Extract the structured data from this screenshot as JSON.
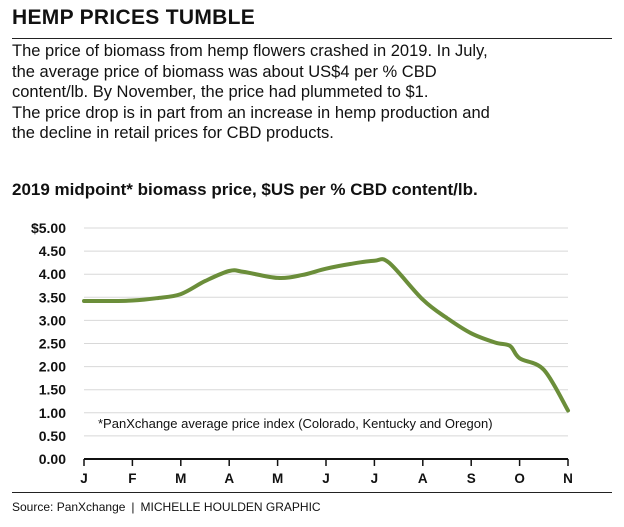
{
  "headline": "HEMP PRICES TUMBLE",
  "description": [
    "The price of biomass from hemp flowers crashed in 2019. In July,",
    "the average price of biomass  was about US$4 per % CBD",
    "content/lb. By November, the price had plummeted to $1.",
    "The price drop is in part from an increase in hemp production and",
    "the decline in retail prices for CBD products."
  ],
  "source": {
    "left": "Source: PanXchange",
    "separator": "|",
    "right": "MICHELLE HOULDEN GRAPHIC"
  },
  "colors": {
    "line": "#6b8e3a",
    "grid": "#d8d8d8",
    "axis": "#111111"
  },
  "chart_data": {
    "type": "line",
    "title": "2019 midpoint* biomass price, $US per % CBD content/lb.",
    "xlabel": "",
    "ylabel": "",
    "categories": [
      "J",
      "F",
      "M",
      "A",
      "M",
      "J",
      "J",
      "A",
      "S",
      "O",
      "N"
    ],
    "yticks": [
      "$5.00",
      "4.50",
      "4.00",
      "3.50",
      "3.00",
      "2.50",
      "2.00",
      "1.50",
      "1.00",
      "0.50",
      "0.00"
    ],
    "ylim": [
      0,
      5
    ],
    "grid": true,
    "annotation": "*PanXchange average price index (Colorado, Kentucky and Oregon)",
    "series": [
      {
        "x": [
          0,
          0.5,
          1,
          1.5,
          2,
          2.5,
          3,
          3.3,
          4,
          4.5,
          5,
          5.5,
          6,
          6.3,
          7,
          7.5,
          8,
          8.5,
          8.8,
          9,
          9.5,
          10
        ],
        "values": [
          3.42,
          3.42,
          3.43,
          3.48,
          3.57,
          3.85,
          4.07,
          4.05,
          3.92,
          3.98,
          4.12,
          4.22,
          4.29,
          4.25,
          3.45,
          3.05,
          2.72,
          2.52,
          2.45,
          2.18,
          1.93,
          1.05
        ]
      }
    ]
  }
}
